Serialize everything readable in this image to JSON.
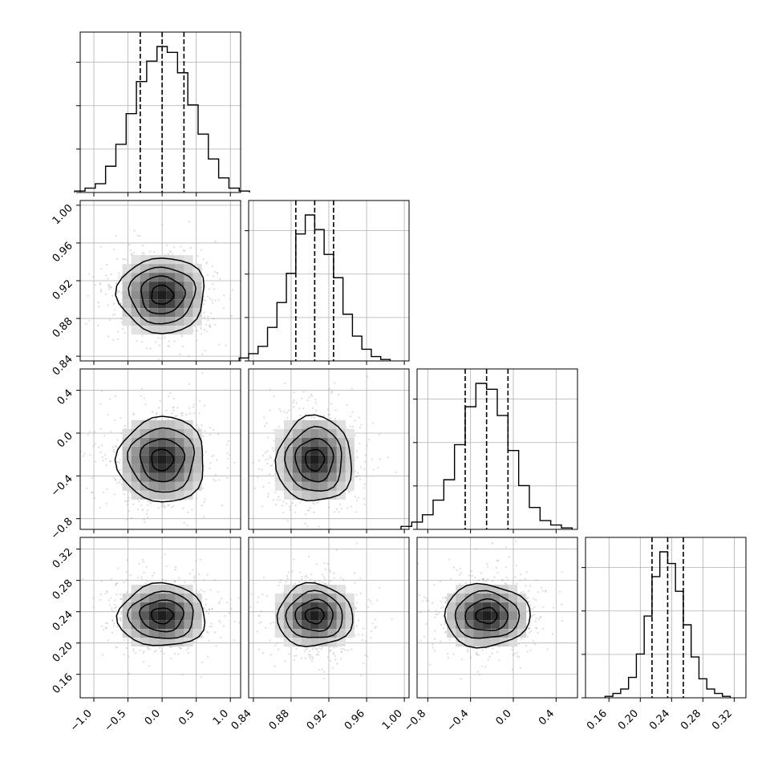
{
  "chart_data": {
    "type": "corner",
    "parameters": [
      {
        "range": [
          -1.2,
          1.15
        ],
        "tick_values": [
          -1.0,
          -0.5,
          0.0,
          0.5,
          1.0
        ],
        "tick_labels": [
          "−1.0",
          "−0.5",
          "0.0",
          "0.5",
          "1.0"
        ],
        "quantiles": [
          -0.32,
          0.0,
          0.32
        ],
        "mean": 0.0,
        "sd": 0.32,
        "hist_values": [
          0.01,
          0.03,
          0.06,
          0.18,
          0.33,
          0.54,
          0.76,
          0.9,
          1.0,
          0.96,
          0.82,
          0.6,
          0.4,
          0.23,
          0.1,
          0.03,
          0.01
        ]
      },
      {
        "range": [
          0.835,
          1.005
        ],
        "tick_values": [
          0.84,
          0.88,
          0.92,
          0.96,
          1.0
        ],
        "tick_labels": [
          "0.84",
          "0.88",
          "0.92",
          "0.96",
          "1.00"
        ],
        "quantiles": [
          0.885,
          0.905,
          0.925
        ],
        "mean": 0.905,
        "sd": 0.02,
        "hist_values": [
          0.02,
          0.05,
          0.1,
          0.23,
          0.4,
          0.6,
          0.87,
          1.0,
          0.9,
          0.73,
          0.57,
          0.32,
          0.17,
          0.08,
          0.03,
          0.01
        ]
      },
      {
        "range": [
          -0.9,
          0.6
        ],
        "tick_values": [
          -0.8,
          -0.4,
          0.0,
          0.4
        ],
        "tick_labels": [
          "−0.8",
          "−0.4",
          "0.0",
          "0.4"
        ],
        "quantiles": [
          -0.45,
          -0.25,
          -0.05
        ],
        "mean": -0.25,
        "sd": 0.2,
        "hist_values": [
          0.02,
          0.05,
          0.1,
          0.2,
          0.34,
          0.58,
          0.84,
          1.0,
          0.96,
          0.78,
          0.54,
          0.3,
          0.15,
          0.06,
          0.03,
          0.01
        ]
      },
      {
        "range": [
          0.13,
          0.335
        ],
        "tick_values": [
          0.16,
          0.2,
          0.24,
          0.28,
          0.32
        ],
        "tick_labels": [
          "0.16",
          "0.20",
          "0.24",
          "0.28",
          "0.32"
        ],
        "quantiles": [
          0.215,
          0.235,
          0.255
        ],
        "mean": 0.235,
        "sd": 0.02,
        "hist_values": [
          0.01,
          0.03,
          0.06,
          0.14,
          0.3,
          0.56,
          0.83,
          1.0,
          0.92,
          0.73,
          0.5,
          0.28,
          0.13,
          0.06,
          0.03,
          0.01
        ]
      }
    ],
    "diag_y_ticks": [
      0,
      1,
      2,
      3
    ],
    "scatter_points_per_panel": 600,
    "contour_levels": [
      0.5,
      1.0,
      1.5,
      2.0
    ],
    "grid": true
  }
}
